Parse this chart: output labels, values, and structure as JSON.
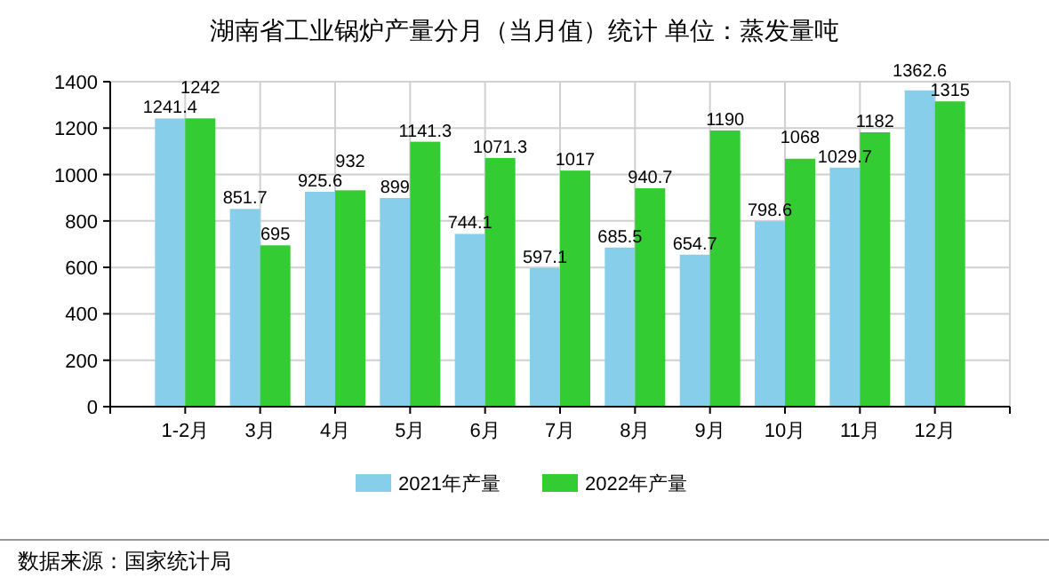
{
  "chart_data": {
    "type": "bar",
    "title": "湖南省工业锅炉产量分月（当月值）统计 单位：蒸发量吨",
    "categories": [
      "1-2月",
      "3月",
      "4月",
      "5月",
      "6月",
      "7月",
      "8月",
      "9月",
      "10月",
      "11月",
      "12月"
    ],
    "series": [
      {
        "name": "2021年产量",
        "color": "#87ceeb",
        "values": [
          1241.4,
          851.7,
          925.6,
          899,
          744.1,
          597.1,
          685.5,
          654.7,
          798.6,
          1029.7,
          1362.6
        ]
      },
      {
        "name": "2022年产量",
        "color": "#33cc33",
        "values": [
          1242,
          695,
          932,
          1141.3,
          1071.3,
          1017,
          940.7,
          1190,
          1068,
          1182,
          1315
        ]
      }
    ],
    "ylim": [
      0,
      1400
    ],
    "yticks": [
      0,
      200,
      400,
      600,
      800,
      1000,
      1200,
      1400
    ],
    "grid": true,
    "legend": "bottom",
    "data_labels": true,
    "annotations": [
      "数据来源：国家统计局"
    ]
  }
}
